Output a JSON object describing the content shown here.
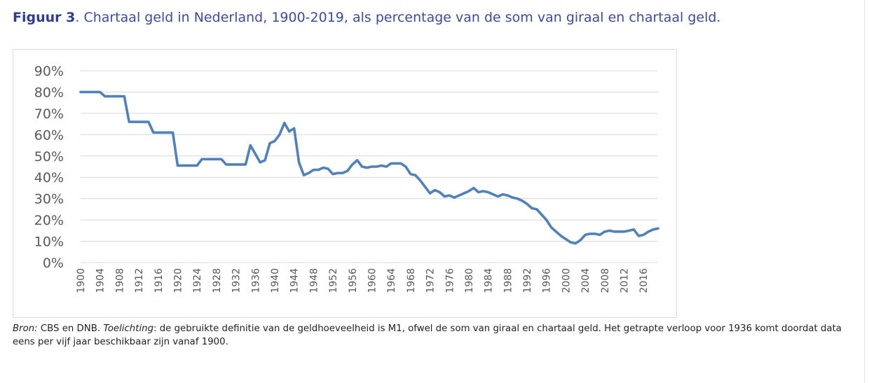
{
  "header": {
    "figure_label": "Figuur 3",
    "title_rest": ". Chartaal geld in Nederland, 1900-2019, als percentage van de som van giraal en chartaal geld."
  },
  "caption": {
    "source_label": "Bron:",
    "source_text": " CBS en DNB. ",
    "note_label": "Toelichting",
    "note_text": ": de gebruikte definitie van de geldhoeveelheid is M1, ofwel de som van giraal en chartaal geld. Het getrapte verloop voor 1936 komt doordat data eens per vijf jaar beschikbaar zijn vanaf 1900."
  },
  "colors": {
    "line": "#4f81bd",
    "grid": "#d9d9d9",
    "tick_text": "#595959",
    "title": "#3b4ba3"
  },
  "chart_data": {
    "type": "line",
    "title": "",
    "xlabel": "",
    "ylabel": "",
    "ylim": [
      0,
      90
    ],
    "xlim": [
      1900,
      2019
    ],
    "grid": true,
    "y_ticks": [
      "0%",
      "10%",
      "20%",
      "30%",
      "40%",
      "50%",
      "60%",
      "70%",
      "80%",
      "90%"
    ],
    "x_ticks": [
      "1900",
      "1904",
      "1908",
      "1912",
      "1916",
      "1920",
      "1924",
      "1928",
      "1932",
      "1936",
      "1940",
      "1944",
      "1948",
      "1952",
      "1956",
      "1960",
      "1964",
      "1968",
      "1972",
      "1976",
      "1980",
      "1984",
      "1988",
      "1992",
      "1996",
      "2000",
      "2004",
      "2008",
      "2012",
      "2016"
    ],
    "series": [
      {
        "name": "",
        "x": [
          1900,
          1901,
          1902,
          1903,
          1904,
          1905,
          1906,
          1907,
          1908,
          1909,
          1910,
          1911,
          1912,
          1913,
          1914,
          1915,
          1916,
          1917,
          1918,
          1919,
          1920,
          1921,
          1922,
          1923,
          1924,
          1925,
          1926,
          1927,
          1928,
          1929,
          1930,
          1931,
          1932,
          1933,
          1934,
          1935,
          1936,
          1937,
          1938,
          1939,
          1940,
          1941,
          1942,
          1943,
          1944,
          1945,
          1946,
          1947,
          1948,
          1949,
          1950,
          1951,
          1952,
          1953,
          1954,
          1955,
          1956,
          1957,
          1958,
          1959,
          1960,
          1961,
          1962,
          1963,
          1964,
          1965,
          1966,
          1967,
          1968,
          1969,
          1970,
          1971,
          1972,
          1973,
          1974,
          1975,
          1976,
          1977,
          1978,
          1979,
          1980,
          1981,
          1982,
          1983,
          1984,
          1985,
          1986,
          1987,
          1988,
          1989,
          1990,
          1991,
          1992,
          1993,
          1994,
          1995,
          1996,
          1997,
          1998,
          1999,
          2000,
          2001,
          2002,
          2003,
          2004,
          2005,
          2006,
          2007,
          2008,
          2009,
          2010,
          2011,
          2012,
          2013,
          2014,
          2015,
          2016,
          2017,
          2018,
          2019
        ],
        "values": [
          80,
          80,
          80,
          80,
          80,
          78,
          78,
          78,
          78,
          78,
          66,
          66,
          66,
          66,
          66,
          61,
          61,
          61,
          61,
          61,
          45.5,
          45.5,
          45.5,
          45.5,
          45.5,
          48.5,
          48.5,
          48.5,
          48.5,
          48.5,
          46,
          46,
          46,
          46,
          46,
          55,
          51,
          47,
          48,
          56,
          57,
          60,
          65.5,
          61.5,
          63,
          47,
          41,
          42,
          43.5,
          43.5,
          44.5,
          44,
          41.5,
          42,
          42,
          43,
          46,
          48,
          45,
          44.5,
          45,
          45,
          45.5,
          45,
          46.5,
          46.5,
          46.5,
          45,
          41.5,
          41,
          38.5,
          35.5,
          32.5,
          34,
          33,
          31,
          31.5,
          30.5,
          31.5,
          32.5,
          33.5,
          35,
          33,
          33.5,
          33,
          32,
          31,
          32,
          31.5,
          30.5,
          30,
          29,
          27.5,
          25.5,
          25,
          22.5,
          20,
          16.5,
          14.5,
          12.5,
          11,
          9.5,
          9,
          10.5,
          13,
          13.5,
          13.5,
          13,
          14.5,
          15,
          14.5,
          14.5,
          14.5,
          15,
          15.5,
          12.5,
          13,
          14.5,
          15.5,
          16
        ]
      }
    ]
  }
}
